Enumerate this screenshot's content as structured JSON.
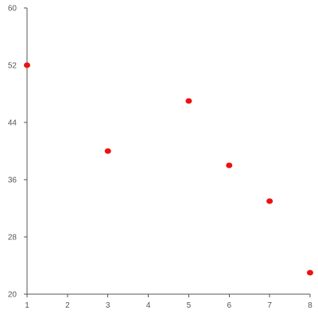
{
  "chart_data": {
    "type": "scatter",
    "title": "",
    "xlabel": "",
    "ylabel": "",
    "x": [
      1,
      3,
      5,
      6,
      7,
      8
    ],
    "y": [
      52,
      40,
      47,
      38,
      33,
      23
    ],
    "xlim": [
      1,
      8
    ],
    "ylim": [
      20,
      60
    ],
    "x_ticks": [
      "1",
      "2",
      "3",
      "4",
      "5",
      "6",
      "7",
      "8"
    ],
    "y_ticks": [
      "20",
      "28",
      "36",
      "44",
      "52",
      "60"
    ],
    "grid": false,
    "legend": "none",
    "point_color": "#ee1111",
    "axis_color": "#555555"
  }
}
